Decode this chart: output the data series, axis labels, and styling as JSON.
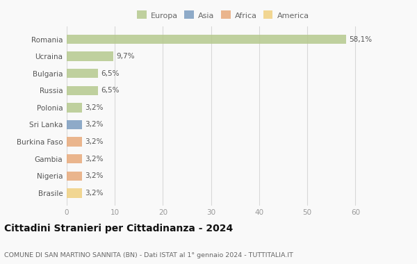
{
  "countries": [
    "Romania",
    "Ucraina",
    "Bulgaria",
    "Russia",
    "Polonia",
    "Sri Lanka",
    "Burkina Faso",
    "Gambia",
    "Nigeria",
    "Brasile"
  ],
  "values": [
    58.1,
    9.7,
    6.5,
    6.5,
    3.2,
    3.2,
    3.2,
    3.2,
    3.2,
    3.2
  ],
  "labels": [
    "58,1%",
    "9,7%",
    "6,5%",
    "6,5%",
    "3,2%",
    "3,2%",
    "3,2%",
    "3,2%",
    "3,2%",
    "3,2%"
  ],
  "colors": [
    "#b5c98e",
    "#b5c98e",
    "#b5c98e",
    "#b5c98e",
    "#b5c98e",
    "#7b9dc0",
    "#e8a97a",
    "#e8a97a",
    "#e8a97a",
    "#f0d080"
  ],
  "legend_labels": [
    "Europa",
    "Asia",
    "Africa",
    "America"
  ],
  "legend_colors": [
    "#b5c98e",
    "#7b9dc0",
    "#e8a97a",
    "#f0d080"
  ],
  "xlim": [
    0,
    65
  ],
  "xticks": [
    0,
    10,
    20,
    30,
    40,
    50,
    60
  ],
  "title": "Cittadini Stranieri per Cittadinanza - 2024",
  "subtitle": "COMUNE DI SAN MARTINO SANNITA (BN) - Dati ISTAT al 1° gennaio 2024 - TUTTITALIA.IT",
  "bg_color": "#f9f9f9",
  "grid_color": "#d8d8d8",
  "bar_height": 0.55,
  "label_fontsize": 7.5,
  "ytick_fontsize": 7.5,
  "xtick_fontsize": 7.5,
  "title_fontsize": 10,
  "subtitle_fontsize": 6.8,
  "legend_fontsize": 8
}
